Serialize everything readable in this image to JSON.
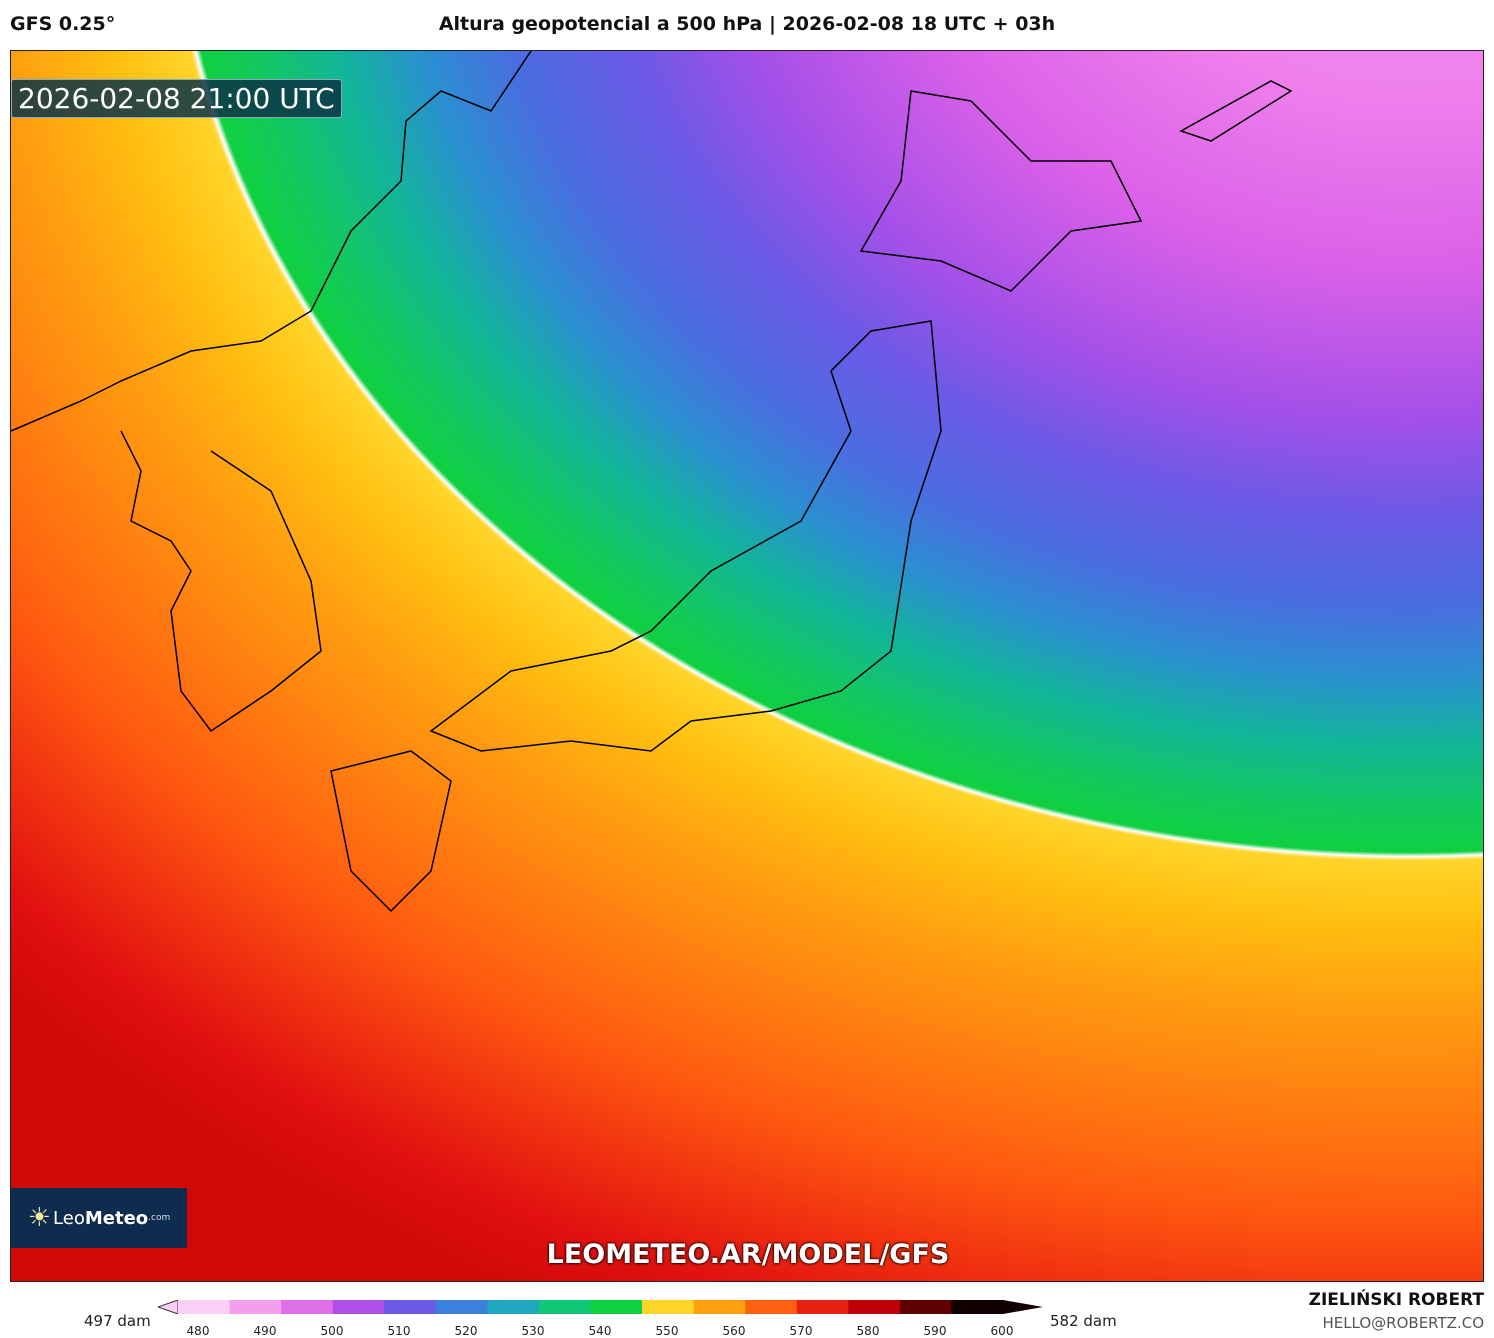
{
  "header": {
    "model": "GFS 0.25°",
    "title": "Altura geopotencial a 500 hPa | 2026-02-08 18 UTC + 03h"
  },
  "map": {
    "valid_time": "2026-02-08 21:00 UTC",
    "watermark": "LEOMETEO.AR/MODEL/GFS",
    "highlight_contour_color": "#ffffff"
  },
  "logo": {
    "text_light": "Leo",
    "text_bold": "Meteo",
    "suffix": ".com"
  },
  "colorbar": {
    "min_label": "497 dam",
    "max_label": "582 dam",
    "ticks": [
      "480",
      "490",
      "500",
      "510",
      "520",
      "530",
      "540",
      "550",
      "560",
      "570",
      "580",
      "590",
      "600"
    ],
    "colors": [
      "#fbd0f8",
      "#f2a0ee",
      "#e070e8",
      "#b050e8",
      "#6a5ae6",
      "#3a80dc",
      "#20a8c0",
      "#10c878",
      "#10d040",
      "#ffd52a",
      "#ffa010",
      "#ff6010",
      "#e82010",
      "#c00008",
      "#600000",
      "#100000"
    ]
  },
  "credits": {
    "author": "ZIELIŃSKI ROBERT",
    "email": "HELLO@ROBERTZ.CO"
  }
}
